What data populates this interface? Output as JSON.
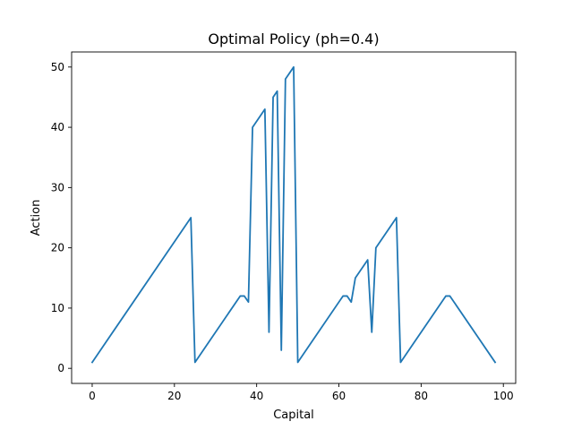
{
  "chart_data": {
    "type": "line",
    "title": "Optimal Policy (ph=0.4)",
    "xlabel": "Capital",
    "ylabel": "Action",
    "xlim": [
      -5,
      103
    ],
    "ylim": [
      -2.5,
      52.5
    ],
    "xticks": [
      0,
      20,
      40,
      60,
      80,
      100
    ],
    "yticks": [
      0,
      10,
      20,
      30,
      40,
      50
    ],
    "grid": false,
    "legend": "none",
    "series": [
      {
        "color": "#1f77b4",
        "points": [
          [
            0,
            1
          ],
          [
            24,
            25
          ],
          [
            25,
            1
          ],
          [
            36,
            12
          ],
          [
            37,
            12
          ],
          [
            38,
            11
          ],
          [
            39,
            40
          ],
          [
            42,
            43
          ],
          [
            43,
            6
          ],
          [
            44,
            45
          ],
          [
            45,
            46
          ],
          [
            46,
            3
          ],
          [
            47,
            48
          ],
          [
            49,
            50
          ],
          [
            50,
            1
          ],
          [
            61,
            12
          ],
          [
            62,
            12
          ],
          [
            63,
            11
          ],
          [
            64,
            15
          ],
          [
            67,
            18
          ],
          [
            68,
            6
          ],
          [
            69,
            20
          ],
          [
            74,
            25
          ],
          [
            75,
            1
          ],
          [
            86,
            12
          ],
          [
            87,
            12
          ],
          [
            98,
            1
          ]
        ]
      }
    ]
  }
}
